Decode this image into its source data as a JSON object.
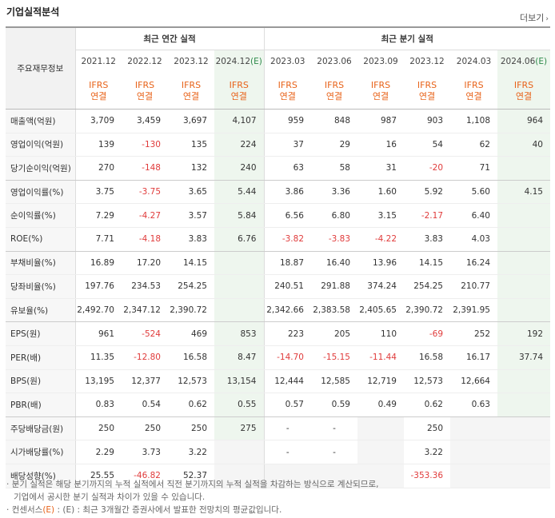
{
  "title": "기업실적분석",
  "more_label": "더보기",
  "row_header_label": "주요재무정보",
  "groups": [
    "최근 연간 실적",
    "최근 분기 실적"
  ],
  "ifrs_line1": "IFRS",
  "ifrs_line2": "연결",
  "periods": [
    "2021.12",
    "2022.12",
    "2023.12",
    "2024.12(E)",
    "2023.03",
    "2023.06",
    "2023.09",
    "2023.12",
    "2024.03",
    "2024.06(E)"
  ],
  "estimate_columns": [
    3,
    9
  ],
  "rows": [
    {
      "label": "매출액(억원)",
      "values": [
        "3,709",
        "3,459",
        "3,697",
        "4,107",
        "959",
        "848",
        "987",
        "903",
        "1,108",
        "964"
      ]
    },
    {
      "label": "영업이익(억원)",
      "values": [
        "139",
        "-130",
        "135",
        "224",
        "37",
        "29",
        "16",
        "54",
        "62",
        "40"
      ]
    },
    {
      "label": "당기순이익(억원)",
      "values": [
        "270",
        "-148",
        "132",
        "240",
        "63",
        "58",
        "31",
        "-20",
        "71",
        ""
      ]
    },
    {
      "label": "영업이익률(%)",
      "values": [
        "3.75",
        "-3.75",
        "3.65",
        "5.44",
        "3.86",
        "3.36",
        "1.60",
        "5.92",
        "5.60",
        "4.15"
      ]
    },
    {
      "label": "순이익률(%)",
      "values": [
        "7.29",
        "-4.27",
        "3.57",
        "5.84",
        "6.56",
        "6.80",
        "3.15",
        "-2.17",
        "6.40",
        ""
      ]
    },
    {
      "label": "ROE(%)",
      "values": [
        "7.71",
        "-4.18",
        "3.83",
        "6.76",
        "-3.82",
        "-3.83",
        "-4.22",
        "3.83",
        "4.03",
        ""
      ]
    },
    {
      "label": "부채비율(%)",
      "values": [
        "16.89",
        "17.20",
        "14.15",
        "",
        "18.87",
        "16.40",
        "13.96",
        "14.15",
        "16.24",
        ""
      ]
    },
    {
      "label": "당좌비율(%)",
      "values": [
        "197.76",
        "234.53",
        "254.25",
        "",
        "240.51",
        "291.88",
        "374.24",
        "254.25",
        "210.77",
        ""
      ]
    },
    {
      "label": "유보율(%)",
      "values": [
        "2,492.70",
        "2,347.12",
        "2,390.72",
        "",
        "2,342.66",
        "2,383.58",
        "2,405.65",
        "2,390.72",
        "2,391.95",
        ""
      ]
    },
    {
      "label": "EPS(원)",
      "values": [
        "961",
        "-524",
        "469",
        "853",
        "223",
        "205",
        "110",
        "-69",
        "252",
        "192"
      ]
    },
    {
      "label": "PER(배)",
      "values": [
        "11.35",
        "-12.80",
        "16.58",
        "8.47",
        "-14.70",
        "-15.15",
        "-11.44",
        "16.58",
        "16.17",
        "37.74"
      ]
    },
    {
      "label": "BPS(원)",
      "values": [
        "13,195",
        "12,377",
        "12,573",
        "13,154",
        "12,444",
        "12,585",
        "12,719",
        "12,573",
        "12,664",
        ""
      ]
    },
    {
      "label": "PBR(배)",
      "values": [
        "0.83",
        "0.54",
        "0.62",
        "0.55",
        "0.57",
        "0.59",
        "0.49",
        "0.62",
        "0.63",
        ""
      ]
    },
    {
      "label": "주당배당금(원)",
      "values": [
        "250",
        "250",
        "250",
        "275",
        "-",
        "-",
        "",
        "250",
        "",
        ""
      ]
    },
    {
      "label": "시가배당률(%)",
      "values": [
        "2.29",
        "3.73",
        "3.22",
        "",
        "-",
        "-",
        "",
        "3.22",
        "",
        ""
      ]
    },
    {
      "label": "배당성향(%)",
      "values": [
        "25.55",
        "-46.82",
        "52.37",
        "",
        "",
        "",
        "",
        "-353.36",
        "",
        ""
      ]
    }
  ],
  "notes": [
    "분기 실적은 해당 분기까지의 누적 실적에서 직전 분기까지의 누적 실적을 차감하는 방식으로 계산되므로,",
    "기업에서 공시한 분기 실적과 차이가 있을 수 있습니다.",
    "(E) : 최근 3개월간 증권사에서 발표한 전망치의 평균값입니다."
  ],
  "note3_prefix": "컨센서스",
  "colors": {
    "accent": "#e8631a",
    "negative": "#e03b3b",
    "estimate_bg": "#eef6ee"
  }
}
